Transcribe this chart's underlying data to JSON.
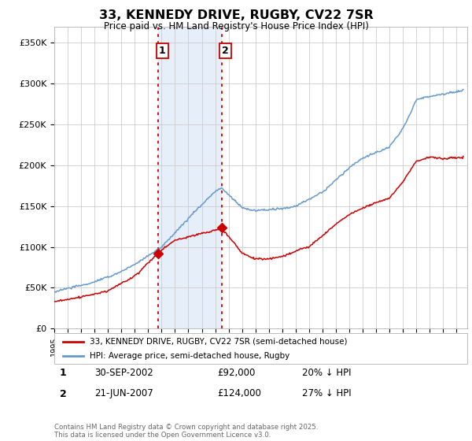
{
  "title": "33, KENNEDY DRIVE, RUGBY, CV22 7SR",
  "subtitle": "Price paid vs. HM Land Registry's House Price Index (HPI)",
  "ylabel_ticks": [
    "£0",
    "£50K",
    "£100K",
    "£150K",
    "£200K",
    "£250K",
    "£300K",
    "£350K"
  ],
  "ytick_values": [
    0,
    50000,
    100000,
    150000,
    200000,
    250000,
    300000,
    350000
  ],
  "ylim": [
    0,
    370000
  ],
  "xlim_start": 1995.0,
  "xlim_end": 2025.8,
  "purchase1_date": 2002.75,
  "purchase1_price": 92000,
  "purchase1_label": "1",
  "purchase2_date": 2007.47,
  "purchase2_price": 124000,
  "purchase2_label": "2",
  "shade_color": "#dce8f8",
  "shade_alpha": 0.7,
  "vline_color": "#cc0000",
  "vline_style": ":",
  "hpi_color": "#6699cc",
  "price_color": "#cc0000",
  "legend1_label": "33, KENNEDY DRIVE, RUGBY, CV22 7SR (semi-detached house)",
  "legend2_label": "HPI: Average price, semi-detached house, Rugby",
  "table_row1": [
    "1",
    "30-SEP-2002",
    "£92,000",
    "20% ↓ HPI"
  ],
  "table_row2": [
    "2",
    "21-JUN-2007",
    "£124,000",
    "27% ↓ HPI"
  ],
  "footer": "Contains HM Land Registry data © Crown copyright and database right 2025.\nThis data is licensed under the Open Government Licence v3.0.",
  "background_color": "#ffffff",
  "grid_color": "#cccccc"
}
